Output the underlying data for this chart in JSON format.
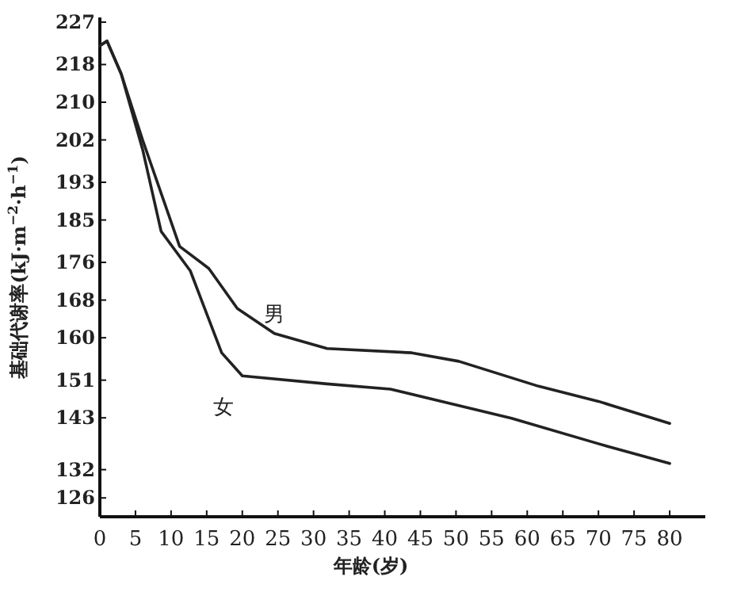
{
  "chart_data": {
    "type": "line",
    "xlabel": "年龄(岁)",
    "ylabel": "基础代谢率(kJ·m$^{−2}$·h$^{−1}$)",
    "xlim": [
      0,
      85
    ],
    "xticks": [
      0,
      5,
      10,
      15,
      20,
      25,
      30,
      35,
      40,
      45,
      50,
      55,
      60,
      65,
      70,
      75,
      80
    ],
    "ylim": [
      122,
      228
    ],
    "yticks": [
      126,
      132,
      143,
      151,
      160,
      168,
      176,
      185,
      193,
      202,
      210,
      218,
      227
    ],
    "grid": false,
    "marker": "none",
    "line_style": "solid",
    "series": [
      {
        "name": "男",
        "color": "#222222",
        "x": [
          0,
          1,
          3,
          6,
          11.2,
          15.3,
          19.3,
          24.5,
          31.9,
          43.8,
          50.4,
          61.6,
          70,
          80
        ],
        "values": [
          222,
          223,
          216,
          202,
          179.4,
          174.7,
          166.2,
          160.9,
          157.7,
          156.8,
          155,
          149.7,
          146.5,
          141.8
        ]
      },
      {
        "name": "女",
        "color": "#222222",
        "x": [
          0,
          1,
          3,
          6,
          8.6,
          12.7,
          17.1,
          20,
          31.9,
          40.8,
          57.8,
          70,
          80
        ],
        "values": [
          222,
          223,
          216,
          200,
          182.6,
          174.2,
          156.8,
          151.9,
          150.2,
          149.1,
          142.9,
          137.5,
          133.3
        ]
      }
    ]
  }
}
